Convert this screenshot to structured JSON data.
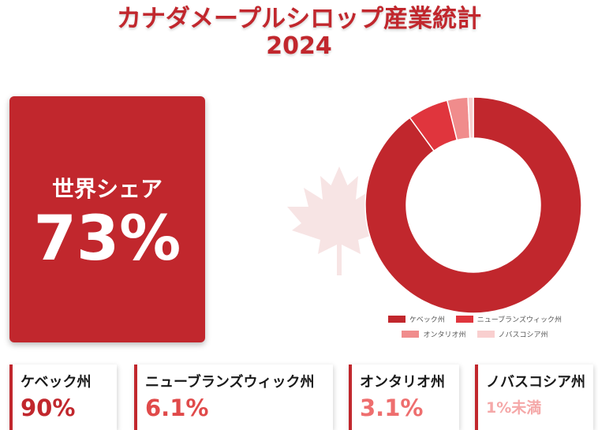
{
  "header": {
    "title": "カナダメープルシロップ産業統計",
    "year": "2024"
  },
  "share_card": {
    "label": "世界シェア",
    "value": "73%"
  },
  "stats": [
    {
      "name": "ケベック州",
      "value": "90%",
      "color": "#c1272d"
    },
    {
      "name": "ニューブランズウィック州",
      "value": "6.1%",
      "color": "#e04a4a"
    },
    {
      "name": "オンタリオ州",
      "value": "3.1%",
      "color": "#ee6e6e"
    },
    {
      "name": "ノバスコシア州",
      "value": "1%未満",
      "color": "#f5a8a8"
    }
  ],
  "chart_data": {
    "type": "pie",
    "donut": true,
    "categories": [
      "ケベック州",
      "ニューブランズウィック州",
      "オンタリオ州",
      "ノバスコシア州"
    ],
    "values": [
      90,
      6.1,
      3.1,
      0.8
    ],
    "colors": [
      "#c1272d",
      "#e0353d",
      "#f08c8c",
      "#f9cfcf"
    ],
    "legend": "bottom"
  }
}
